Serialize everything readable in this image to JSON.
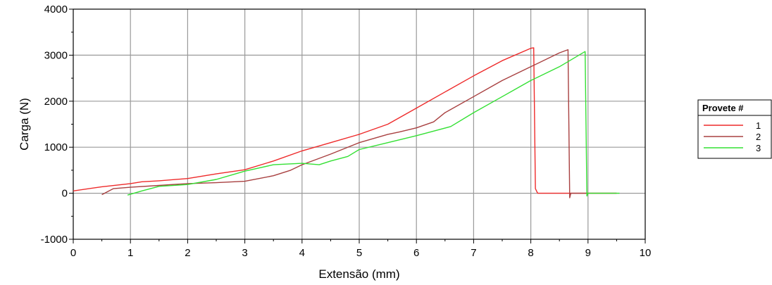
{
  "chart_data": {
    "type": "line",
    "title": "",
    "xlabel": "Extensão (mm)",
    "ylabel": "Carga (N)",
    "xlim": [
      0,
      10
    ],
    "ylim": [
      -1000,
      4000
    ],
    "x_ticks": [
      0,
      1,
      2,
      3,
      4,
      5,
      6,
      7,
      8,
      9,
      10
    ],
    "y_ticks": [
      -1000,
      0,
      1000,
      2000,
      3000,
      4000
    ],
    "x_tick_labels": [
      "0",
      "1",
      "2",
      "3",
      "4",
      "5",
      "6",
      "7",
      "8",
      "9",
      "10"
    ],
    "y_tick_labels": [
      "-1000",
      "0",
      "1000",
      "2000",
      "3000",
      "4000"
    ],
    "grid": true,
    "legend": {
      "title": "Provete #",
      "placement": "right"
    },
    "series": [
      {
        "name": "1",
        "color": "#ee2a2a",
        "points": [
          [
            0,
            50
          ],
          [
            0.5,
            140
          ],
          [
            1,
            210
          ],
          [
            1.2,
            250
          ],
          [
            1.5,
            270
          ],
          [
            2,
            320
          ],
          [
            2.5,
            420
          ],
          [
            3,
            510
          ],
          [
            3.5,
            700
          ],
          [
            4,
            920
          ],
          [
            4.5,
            1100
          ],
          [
            5,
            1280
          ],
          [
            5.5,
            1500
          ],
          [
            6,
            1850
          ],
          [
            6.5,
            2200
          ],
          [
            7,
            2550
          ],
          [
            7.5,
            2880
          ],
          [
            8,
            3150
          ],
          [
            8.05,
            3160
          ],
          [
            8.08,
            100
          ],
          [
            8.12,
            0
          ],
          [
            9.5,
            0
          ]
        ]
      },
      {
        "name": "2",
        "color": "#a84040",
        "points": [
          [
            0.5,
            -30
          ],
          [
            0.7,
            100
          ],
          [
            1,
            130
          ],
          [
            1.5,
            170
          ],
          [
            2,
            210
          ],
          [
            2.5,
            230
          ],
          [
            3,
            260
          ],
          [
            3.5,
            380
          ],
          [
            3.8,
            500
          ],
          [
            4,
            620
          ],
          [
            4.5,
            850
          ],
          [
            5,
            1100
          ],
          [
            5.5,
            1280
          ],
          [
            5.7,
            1330
          ],
          [
            6,
            1420
          ],
          [
            6.3,
            1550
          ],
          [
            6.5,
            1750
          ],
          [
            7,
            2100
          ],
          [
            7.5,
            2450
          ],
          [
            8,
            2750
          ],
          [
            8.5,
            3050
          ],
          [
            8.65,
            3120
          ],
          [
            8.68,
            -100
          ],
          [
            8.7,
            0
          ],
          [
            9.5,
            0
          ]
        ]
      },
      {
        "name": "3",
        "color": "#33e033",
        "points": [
          [
            0.95,
            -40
          ],
          [
            1.2,
            50
          ],
          [
            1.5,
            150
          ],
          [
            2,
            190
          ],
          [
            2.5,
            300
          ],
          [
            3,
            480
          ],
          [
            3.5,
            620
          ],
          [
            4,
            650
          ],
          [
            4.3,
            620
          ],
          [
            4.5,
            700
          ],
          [
            4.8,
            800
          ],
          [
            5,
            950
          ],
          [
            5.5,
            1100
          ],
          [
            6,
            1250
          ],
          [
            6.3,
            1350
          ],
          [
            6.6,
            1450
          ],
          [
            7,
            1750
          ],
          [
            7.5,
            2100
          ],
          [
            8,
            2450
          ],
          [
            8.5,
            2750
          ],
          [
            8.95,
            3080
          ],
          [
            8.98,
            -60
          ],
          [
            9,
            0
          ],
          [
            9.55,
            0
          ]
        ]
      }
    ]
  }
}
